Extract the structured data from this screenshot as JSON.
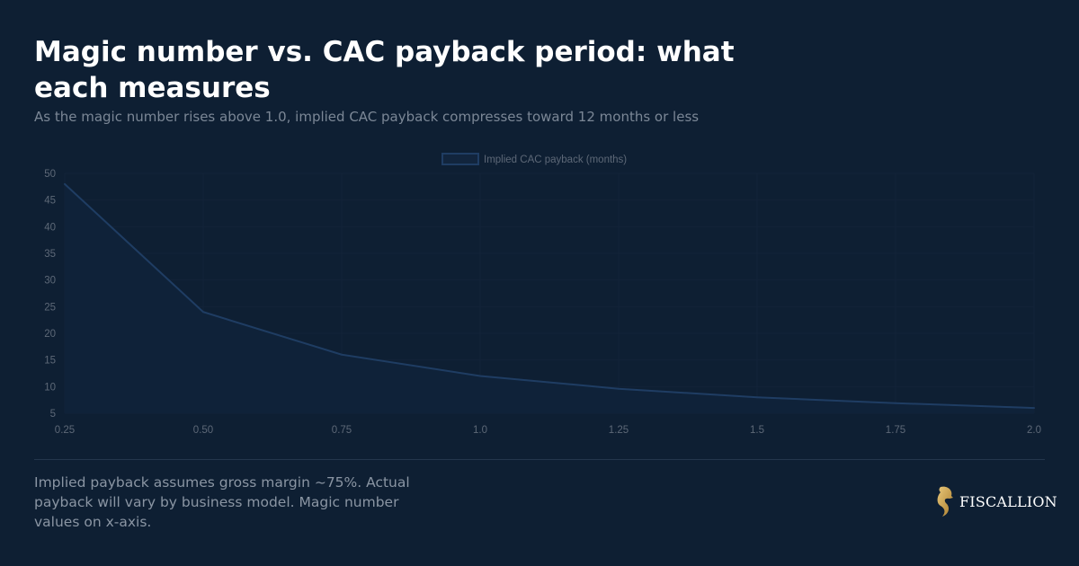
{
  "header": {
    "title": "Magic number vs. CAC payback period: what each measures",
    "subtitle": "As the magic number rises above 1.0, implied CAC payback compresses toward 12 months or less"
  },
  "footer": {
    "note": "Implied payback assumes gross margin ~75%. Actual payback will vary by business model. Magic number values on x-axis.",
    "brand": "FISCALLION"
  },
  "chart_data": {
    "type": "line",
    "categories": [
      "0.25",
      "0.50",
      "0.75",
      "1.0",
      "1.25",
      "1.5",
      "1.75",
      "2.0"
    ],
    "series": [
      {
        "name": "Implied CAC payback (months)",
        "values": [
          48,
          24,
          16,
          12,
          9.6,
          8,
          6.9,
          6
        ],
        "color": "#1f3d63"
      }
    ],
    "yticks": [
      5,
      10,
      15,
      20,
      25,
      30,
      35,
      40,
      45,
      50
    ],
    "ylim": [
      5,
      50
    ],
    "grid": true,
    "legend": "top-center",
    "fill": true
  }
}
